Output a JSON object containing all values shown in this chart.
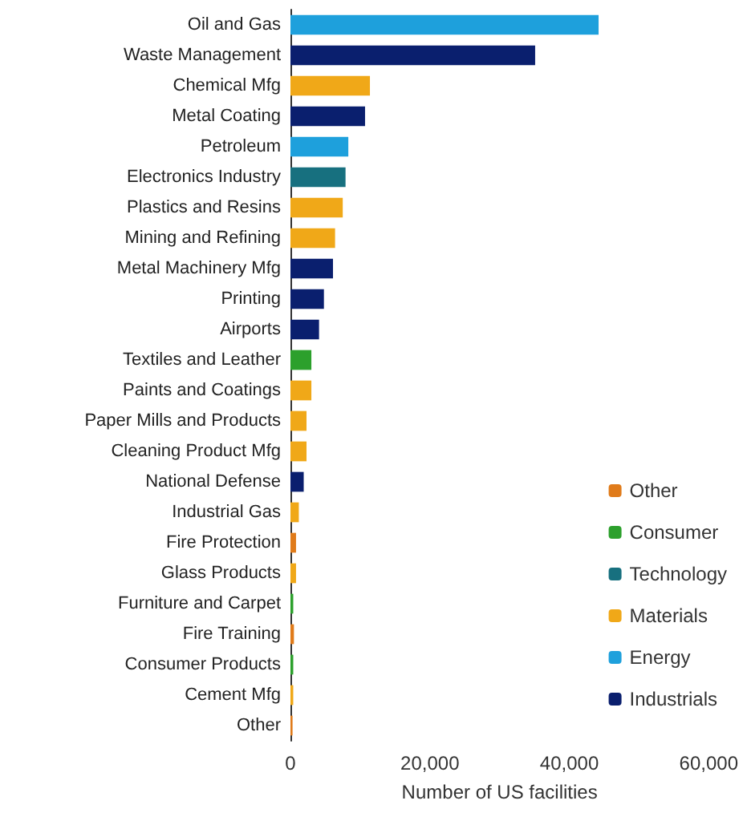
{
  "chart_data": {
    "type": "bar",
    "orientation": "horizontal",
    "stacked": true,
    "xlabel": "Number of US facilities",
    "categories": [
      "Oil and Gas",
      "Waste Management",
      "Chemical Mfg",
      "Metal Coating",
      "Petroleum",
      "Electronics Industry",
      "Plastics and Resins",
      "Mining and Refining",
      "Metal Machinery Mfg",
      "Printing",
      "Airports",
      "Textiles and Leather",
      "Paints and Coatings",
      "Paper Mills and Products",
      "Cleaning Product Mfg",
      "National Defense",
      "Industrial Gas",
      "Fire Protection",
      "Glass Products",
      "Furniture and Carpet",
      "Fire Training",
      "Consumer Products",
      "Cement Mfg",
      "Other"
    ],
    "series": [
      {
        "name": "Other",
        "color": "#e07b1a",
        "values": [
          null,
          null,
          null,
          null,
          null,
          null,
          null,
          null,
          null,
          null,
          null,
          null,
          null,
          null,
          null,
          null,
          null,
          800,
          null,
          null,
          500,
          null,
          null,
          300
        ]
      },
      {
        "name": "Consumer",
        "color": "#2ca02c",
        "values": [
          null,
          null,
          null,
          null,
          null,
          null,
          null,
          null,
          null,
          null,
          null,
          3000,
          null,
          null,
          null,
          null,
          null,
          null,
          null,
          400,
          null,
          400,
          null,
          null
        ]
      },
      {
        "name": "Technology",
        "color": "#17707f",
        "values": [
          null,
          null,
          null,
          null,
          null,
          7900,
          null,
          null,
          null,
          null,
          null,
          null,
          null,
          null,
          null,
          null,
          null,
          null,
          null,
          null,
          null,
          null,
          null,
          null
        ]
      },
      {
        "name": "Materials",
        "color": "#f0a818",
        "values": [
          null,
          null,
          11400,
          null,
          null,
          null,
          7500,
          6400,
          null,
          null,
          null,
          null,
          3000,
          2300,
          2300,
          null,
          1200,
          null,
          800,
          null,
          null,
          null,
          400,
          null
        ]
      },
      {
        "name": "Energy",
        "color": "#1ea0dc",
        "values": [
          44200,
          null,
          null,
          null,
          8300,
          null,
          null,
          null,
          null,
          null,
          null,
          null,
          null,
          null,
          null,
          null,
          null,
          null,
          null,
          null,
          null,
          null,
          null,
          null
        ]
      },
      {
        "name": "Industrials",
        "color": "#0a1f6e",
        "values": [
          null,
          35100,
          null,
          10700,
          null,
          null,
          null,
          null,
          6100,
          4800,
          4100,
          null,
          null,
          null,
          null,
          1900,
          null,
          null,
          null,
          null,
          null,
          null,
          null,
          null
        ]
      }
    ],
    "xlim": [
      0,
      60000
    ],
    "xticks": [
      {
        "value": 0,
        "label": "0"
      },
      {
        "value": 20000,
        "label": "20,000"
      },
      {
        "value": 40000,
        "label": "40,000"
      },
      {
        "value": 60000,
        "label": "60,000"
      }
    ],
    "legend": "bottom right"
  }
}
